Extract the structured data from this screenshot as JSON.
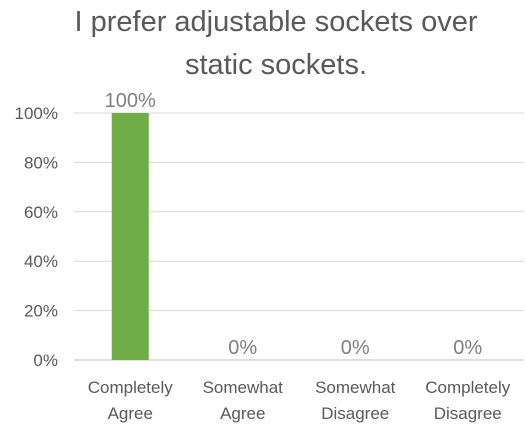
{
  "chart_data": {
    "type": "bar",
    "title_lines": [
      "I prefer adjustable sockets over",
      "static sockets."
    ],
    "categories": [
      [
        "Completely",
        "Agree"
      ],
      [
        "Somewhat",
        "Agree"
      ],
      [
        "Somewhat",
        "Disagree"
      ],
      [
        "Completely",
        "Disagree"
      ]
    ],
    "values": [
      100,
      0,
      0,
      0
    ],
    "data_labels": [
      "100%",
      "0%",
      "0%",
      "0%"
    ],
    "ylim": [
      0,
      100
    ],
    "yticks": [
      0,
      20,
      40,
      60,
      80,
      100
    ],
    "ytick_labels": [
      "0%",
      "20%",
      "40%",
      "60%",
      "80%",
      "100%"
    ],
    "grid": true,
    "bar_color": "#70ad47"
  }
}
